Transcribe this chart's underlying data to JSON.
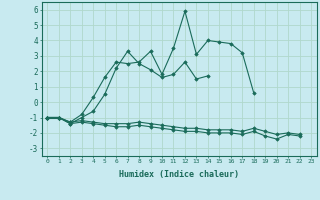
{
  "xlabel": "Humidex (Indice chaleur)",
  "background_color": "#c8eaf0",
  "grid_color": "#b0d8cc",
  "line_color": "#1a6b5a",
  "x_values": [
    0,
    1,
    2,
    3,
    4,
    5,
    6,
    7,
    8,
    9,
    10,
    11,
    12,
    13,
    14,
    15,
    16,
    17,
    18,
    19,
    20,
    21,
    22,
    23
  ],
  "series": [
    [
      -1.0,
      -1.0,
      null,
      null,
      null,
      null,
      null,
      null,
      null,
      null,
      null,
      null,
      null,
      null,
      null,
      null,
      null,
      null,
      null,
      null,
      null,
      null,
      null,
      null
    ],
    [
      -1.0,
      -1.0,
      -1.3,
      -0.8,
      0.3,
      1.6,
      2.6,
      2.5,
      2.6,
      3.3,
      1.8,
      3.5,
      5.9,
      3.1,
      4.0,
      3.9,
      3.8,
      3.2,
      0.6,
      null,
      null,
      null,
      null,
      null
    ],
    [
      -1.0,
      -1.0,
      -1.4,
      -1.0,
      -0.6,
      0.5,
      2.2,
      3.3,
      2.5,
      2.1,
      1.6,
      1.8,
      2.6,
      1.5,
      1.7,
      null,
      null,
      null,
      null,
      null,
      null,
      null,
      null,
      null
    ],
    [
      -1.0,
      -1.0,
      -1.3,
      -1.2,
      -1.3,
      -1.4,
      -1.4,
      -1.4,
      -1.3,
      -1.4,
      -1.5,
      -1.6,
      -1.7,
      -1.7,
      -1.8,
      -1.8,
      -1.8,
      -1.9,
      -1.7,
      -1.9,
      -2.1,
      -2.0,
      -2.1,
      null
    ],
    [
      -1.0,
      -1.0,
      -1.4,
      -1.3,
      -1.4,
      -1.5,
      -1.6,
      -1.6,
      -1.5,
      -1.6,
      -1.7,
      -1.8,
      -1.9,
      -1.9,
      -2.0,
      -2.0,
      -2.0,
      -2.1,
      -1.9,
      -2.2,
      -2.4,
      -2.1,
      -2.2,
      null
    ]
  ],
  "ylim": [
    -3.5,
    6.5
  ],
  "xlim": [
    -0.5,
    23.5
  ],
  "yticks": [
    -3,
    -2,
    -1,
    0,
    1,
    2,
    3,
    4,
    5,
    6
  ],
  "xticks": [
    0,
    1,
    2,
    3,
    4,
    5,
    6,
    7,
    8,
    9,
    10,
    11,
    12,
    13,
    14,
    15,
    16,
    17,
    18,
    19,
    20,
    21,
    22,
    23
  ]
}
